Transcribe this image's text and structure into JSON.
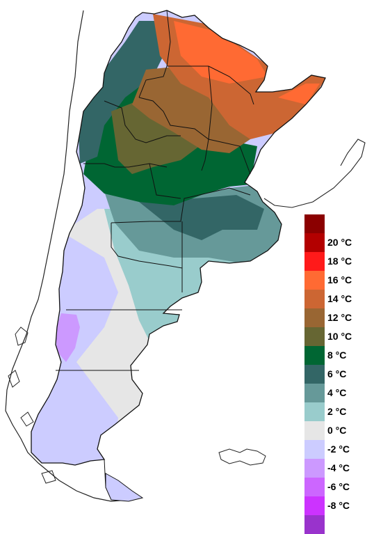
{
  "legend": {
    "items": [
      {
        "label": "",
        "color": "#8b0000"
      },
      {
        "label": "20 °C",
        "color": "#b30000"
      },
      {
        "label": "18 °C",
        "color": "#ff1a1a"
      },
      {
        "label": "16 °C",
        "color": "#ff6a33"
      },
      {
        "label": "14 °C",
        "color": "#cc6633"
      },
      {
        "label": "12 °C",
        "color": "#996633"
      },
      {
        "label": "10 °C",
        "color": "#666633"
      },
      {
        "label": "8 °C",
        "color": "#006633"
      },
      {
        "label": "6 °C",
        "color": "#336666"
      },
      {
        "label": "4 °C",
        "color": "#669999"
      },
      {
        "label": "2 °C",
        "color": "#99cccc"
      },
      {
        "label": "0 °C",
        "color": "#e6e6e6"
      },
      {
        "label": "-2 °C",
        "color": "#ccccff"
      },
      {
        "label": "-4 °C",
        "color": "#cc99ff"
      },
      {
        "label": "-6 °C",
        "color": "#cc66ff"
      },
      {
        "label": "-8 °C",
        "color": "#cc33ff"
      },
      {
        "label": "",
        "color": "#9933cc"
      }
    ]
  }
}
